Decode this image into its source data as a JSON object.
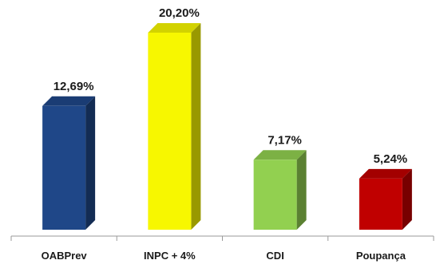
{
  "chart_data": {
    "type": "bar",
    "categories": [
      "OABPrev",
      "INPC + 4%",
      "CDI",
      "Poupança"
    ],
    "values": [
      12.69,
      20.2,
      7.17,
      5.24
    ],
    "value_labels": [
      "12,69%",
      "20,20%",
      "7,17%",
      "5,24%"
    ],
    "colors": [
      "#1f4788",
      "#f7f700",
      "#92d050",
      "#c00000"
    ],
    "ylim": [
      0,
      21
    ],
    "grid": false,
    "style": "3d-columns"
  }
}
